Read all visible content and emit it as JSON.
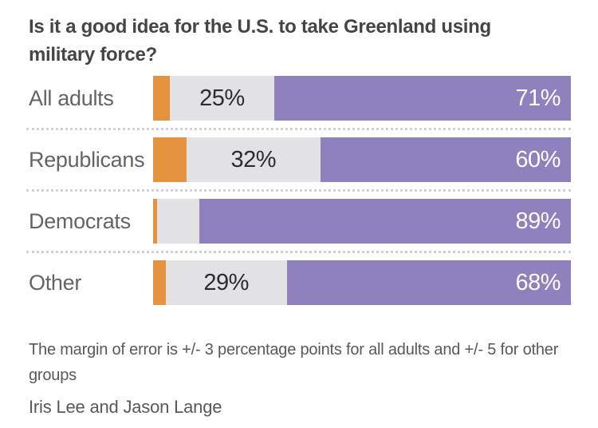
{
  "header": {
    "line1": "Is it a good idea for the U.S. to take Greenland using",
    "line2": "military force?"
  },
  "chart_data": {
    "type": "bar",
    "orientation": "horizontal",
    "stacked": true,
    "title": "Is it a good idea for the U.S. to take Greenland using military force?",
    "categories": [
      "All adults",
      "Republicans",
      "Democrats",
      "Other"
    ],
    "series": [
      {
        "name": "orange-segment",
        "color": "#e5933f",
        "values": [
          4,
          8,
          1,
          3
        ]
      },
      {
        "name": "gray-segment",
        "color": "#e2e1e4",
        "values": [
          25,
          32,
          10,
          29
        ]
      },
      {
        "name": "purple-segment",
        "color": "#8e81be",
        "values": [
          71,
          60,
          89,
          68
        ]
      }
    ],
    "gray_labels": [
      "25%",
      "32%",
      "",
      "29%"
    ],
    "purple_labels": [
      "71%",
      "60%",
      "89%",
      "68%"
    ],
    "xlim": [
      0,
      100
    ],
    "grid": false,
    "legend": false
  },
  "footnote": "The margin of error is +/- 3 percentage points for all adults and +/- 5 for other groups",
  "byline": "Iris Lee and Jason Lange",
  "colors": {
    "orange": "#e5933f",
    "gray": "#e2e1e4",
    "purple": "#8e81be",
    "title_text": "#454545",
    "label_text": "#646464",
    "footer_text": "#595959",
    "separator": "#d2d2d2"
  }
}
